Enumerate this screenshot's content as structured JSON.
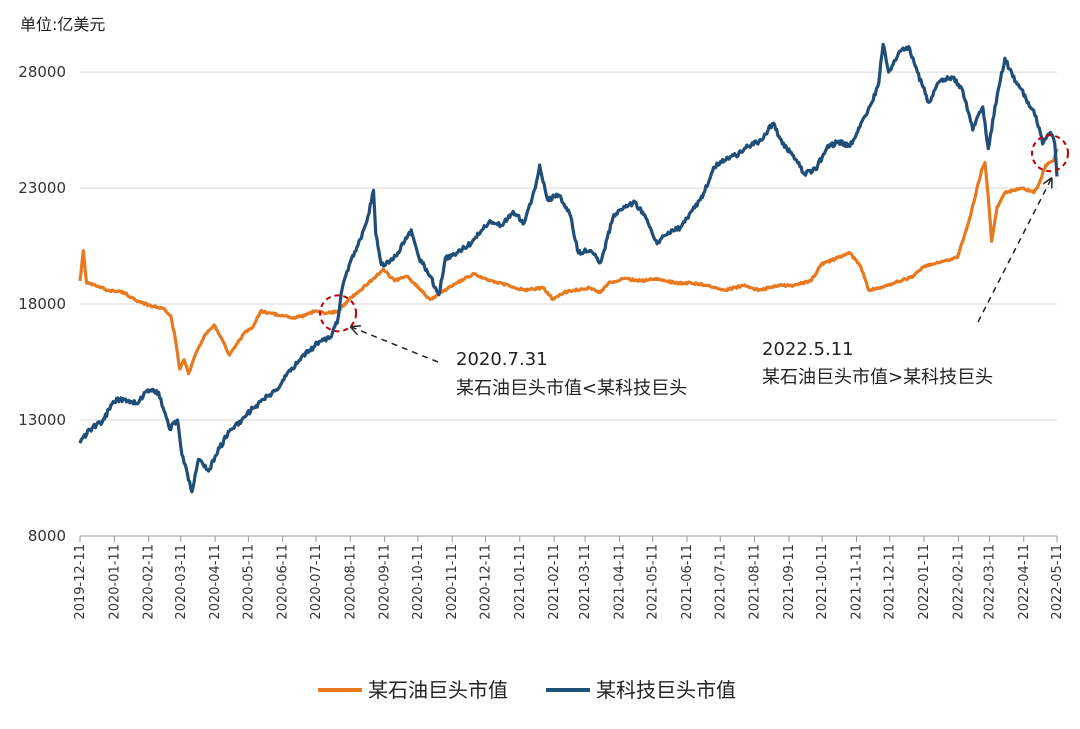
{
  "chart_data": {
    "type": "line",
    "unit_label": "单位:亿美元",
    "y_ticks": [
      8000,
      13000,
      18000,
      23000,
      28000
    ],
    "ylim": [
      8000,
      29600
    ],
    "x_ticks": [
      "2019-12-11",
      "2020-01-11",
      "2020-02-11",
      "2020-03-11",
      "2020-04-11",
      "2020-05-11",
      "2020-06-11",
      "2020-07-11",
      "2020-08-11",
      "2020-09-11",
      "2020-10-11",
      "2020-11-11",
      "2020-12-11",
      "2021-01-11",
      "2021-02-11",
      "2021-03-11",
      "2021-04-11",
      "2021-05-11",
      "2021-06-11",
      "2021-07-11",
      "2021-08-11",
      "2021-09-11",
      "2021-10-11",
      "2021-11-11",
      "2021-12-11",
      "2022-01-11",
      "2022-02-11",
      "2022-03-11",
      "2022-04-11",
      "2022-05-11"
    ],
    "xlim": [
      "2019-12-11",
      "2022-05-11"
    ],
    "grid_y": true,
    "legend_position": "bottom",
    "colors": {
      "oil": "#e8791e",
      "tech": "#1f4e79",
      "highlight": "#c00000",
      "grid": "#d9d9d9"
    },
    "series": [
      {
        "name": "某石油巨头市值",
        "points": [
          [
            "2019-12-11",
            19000
          ],
          [
            "2019-12-14",
            20300
          ],
          [
            "2019-12-17",
            18900
          ],
          [
            "2019-12-25",
            18800
          ],
          [
            "2020-01-05",
            18600
          ],
          [
            "2020-01-20",
            18500
          ],
          [
            "2020-02-01",
            18100
          ],
          [
            "2020-02-15",
            17900
          ],
          [
            "2020-02-25",
            17800
          ],
          [
            "2020-03-02",
            17500
          ],
          [
            "2020-03-06",
            16500
          ],
          [
            "2020-03-10",
            15200
          ],
          [
            "2020-03-14",
            15600
          ],
          [
            "2020-03-18",
            15000
          ],
          [
            "2020-03-24",
            15800
          ],
          [
            "2020-04-01",
            16600
          ],
          [
            "2020-04-10",
            17100
          ],
          [
            "2020-04-18",
            16400
          ],
          [
            "2020-04-24",
            15800
          ],
          [
            "2020-05-01",
            16300
          ],
          [
            "2020-05-08",
            16800
          ],
          [
            "2020-05-15",
            17000
          ],
          [
            "2020-05-22",
            17700
          ],
          [
            "2020-06-01",
            17600
          ],
          [
            "2020-06-10",
            17500
          ],
          [
            "2020-06-20",
            17400
          ],
          [
            "2020-07-01",
            17500
          ],
          [
            "2020-07-10",
            17700
          ],
          [
            "2020-07-20",
            17600
          ],
          [
            "2020-07-31",
            17700
          ],
          [
            "2020-08-10",
            18200
          ],
          [
            "2020-08-20",
            18600
          ],
          [
            "2020-09-01",
            19100
          ],
          [
            "2020-09-10",
            19500
          ],
          [
            "2020-09-20",
            19000
          ],
          [
            "2020-10-01",
            19200
          ],
          [
            "2020-10-12",
            18700
          ],
          [
            "2020-10-22",
            18200
          ],
          [
            "2020-11-01",
            18500
          ],
          [
            "2020-11-15",
            18900
          ],
          [
            "2020-12-01",
            19300
          ],
          [
            "2020-12-15",
            19000
          ],
          [
            "2021-01-01",
            18800
          ],
          [
            "2021-01-15",
            18600
          ],
          [
            "2021-02-01",
            18700
          ],
          [
            "2021-02-10",
            18200
          ],
          [
            "2021-02-20",
            18500
          ],
          [
            "2021-03-01",
            18600
          ],
          [
            "2021-03-15",
            18700
          ],
          [
            "2021-03-25",
            18500
          ],
          [
            "2021-04-01",
            18900
          ],
          [
            "2021-04-15",
            19100
          ],
          [
            "2021-05-01",
            19000
          ],
          [
            "2021-05-15",
            19100
          ],
          [
            "2021-06-01",
            18900
          ],
          [
            "2021-06-15",
            18900
          ],
          [
            "2021-07-01",
            18800
          ],
          [
            "2021-07-15",
            18600
          ],
          [
            "2021-08-01",
            18800
          ],
          [
            "2021-08-15",
            18600
          ],
          [
            "2021-09-01",
            18800
          ],
          [
            "2021-09-15",
            18800
          ],
          [
            "2021-10-01",
            19000
          ],
          [
            "2021-10-10",
            19700
          ],
          [
            "2021-10-25",
            20000
          ],
          [
            "2021-11-05",
            20200
          ],
          [
            "2021-11-15",
            19600
          ],
          [
            "2021-11-22",
            18600
          ],
          [
            "2021-12-01",
            18700
          ],
          [
            "2021-12-15",
            18900
          ],
          [
            "2022-01-01",
            19200
          ],
          [
            "2022-01-10",
            19600
          ],
          [
            "2022-01-25",
            19800
          ],
          [
            "2022-02-10",
            20000
          ],
          [
            "2022-02-20",
            21500
          ],
          [
            "2022-02-27",
            22800
          ],
          [
            "2022-03-04",
            23800
          ],
          [
            "2022-03-07",
            24100
          ],
          [
            "2022-03-10",
            22600
          ],
          [
            "2022-03-13",
            20700
          ],
          [
            "2022-03-18",
            22200
          ],
          [
            "2022-03-25",
            22800
          ],
          [
            "2022-04-01",
            22900
          ],
          [
            "2022-04-10",
            23000
          ],
          [
            "2022-04-20",
            22800
          ],
          [
            "2022-04-25",
            23200
          ],
          [
            "2022-05-01",
            24000
          ],
          [
            "2022-05-08",
            24200
          ],
          [
            "2022-05-11",
            24700
          ]
        ]
      },
      {
        "name": "某科技巨头市值",
        "points": [
          [
            "2019-12-11",
            12000
          ],
          [
            "2019-12-20",
            12600
          ],
          [
            "2019-12-31",
            12900
          ],
          [
            "2020-01-10",
            13800
          ],
          [
            "2020-01-20",
            13900
          ],
          [
            "2020-02-01",
            13700
          ],
          [
            "2020-02-10",
            14300
          ],
          [
            "2020-02-20",
            14200
          ],
          [
            "2020-03-01",
            12600
          ],
          [
            "2020-03-08",
            13000
          ],
          [
            "2020-03-12",
            11500
          ],
          [
            "2020-03-16",
            10900
          ],
          [
            "2020-03-21",
            9900
          ],
          [
            "2020-03-27",
            11300
          ],
          [
            "2020-04-05",
            10800
          ],
          [
            "2020-04-15",
            11800
          ],
          [
            "2020-04-25",
            12600
          ],
          [
            "2020-05-05",
            13000
          ],
          [
            "2020-05-15",
            13500
          ],
          [
            "2020-05-25",
            13900
          ],
          [
            "2020-06-05",
            14300
          ],
          [
            "2020-06-15",
            15000
          ],
          [
            "2020-06-25",
            15500
          ],
          [
            "2020-07-05",
            16000
          ],
          [
            "2020-07-15",
            16400
          ],
          [
            "2020-07-25",
            16600
          ],
          [
            "2020-07-31",
            17400
          ],
          [
            "2020-08-03",
            18500
          ],
          [
            "2020-08-10",
            19700
          ],
          [
            "2020-08-20",
            20800
          ],
          [
            "2020-08-27",
            21800
          ],
          [
            "2020-09-01",
            22900
          ],
          [
            "2020-09-03",
            21000
          ],
          [
            "2020-09-08",
            19700
          ],
          [
            "2020-09-18",
            19900
          ],
          [
            "2020-09-28",
            20600
          ],
          [
            "2020-10-05",
            21200
          ],
          [
            "2020-10-12",
            20000
          ],
          [
            "2020-10-22",
            19200
          ],
          [
            "2020-10-30",
            18400
          ],
          [
            "2020-11-05",
            20000
          ],
          [
            "2020-11-15",
            20200
          ],
          [
            "2020-11-25",
            20500
          ],
          [
            "2020-12-05",
            21000
          ],
          [
            "2020-12-15",
            21600
          ],
          [
            "2020-12-25",
            21400
          ],
          [
            "2021-01-05",
            22000
          ],
          [
            "2021-01-15",
            21500
          ],
          [
            "2021-01-25",
            23000
          ],
          [
            "2021-01-29",
            24000
          ],
          [
            "2021-02-05",
            22500
          ],
          [
            "2021-02-15",
            22700
          ],
          [
            "2021-02-25",
            21900
          ],
          [
            "2021-03-05",
            20200
          ],
          [
            "2021-03-15",
            20300
          ],
          [
            "2021-03-25",
            19800
          ],
          [
            "2021-04-05",
            21700
          ],
          [
            "2021-04-15",
            22200
          ],
          [
            "2021-04-25",
            22400
          ],
          [
            "2021-05-05",
            21700
          ],
          [
            "2021-05-15",
            20600
          ],
          [
            "2021-05-25",
            21100
          ],
          [
            "2021-06-05",
            21300
          ],
          [
            "2021-06-15",
            22000
          ],
          [
            "2021-06-25",
            22600
          ],
          [
            "2021-07-05",
            23900
          ],
          [
            "2021-07-15",
            24200
          ],
          [
            "2021-07-25",
            24400
          ],
          [
            "2021-08-05",
            24800
          ],
          [
            "2021-08-15",
            25000
          ],
          [
            "2021-08-28",
            25800
          ],
          [
            "2021-09-05",
            24900
          ],
          [
            "2021-09-15",
            24400
          ],
          [
            "2021-09-25",
            23600
          ],
          [
            "2021-10-05",
            23800
          ],
          [
            "2021-10-15",
            24700
          ],
          [
            "2021-10-25",
            25000
          ],
          [
            "2021-11-05",
            24800
          ],
          [
            "2021-11-15",
            25800
          ],
          [
            "2021-11-25",
            26700
          ],
          [
            "2021-12-01",
            27500
          ],
          [
            "2021-12-05",
            29200
          ],
          [
            "2021-12-10",
            28000
          ],
          [
            "2021-12-20",
            28900
          ],
          [
            "2021-12-28",
            29100
          ],
          [
            "2022-01-05",
            28000
          ],
          [
            "2022-01-15",
            26700
          ],
          [
            "2022-01-25",
            27600
          ],
          [
            "2022-02-05",
            27800
          ],
          [
            "2022-02-15",
            27200
          ],
          [
            "2022-02-24",
            25500
          ],
          [
            "2022-03-05",
            26500
          ],
          [
            "2022-03-10",
            24700
          ],
          [
            "2022-03-18",
            27000
          ],
          [
            "2022-03-25",
            28600
          ],
          [
            "2022-04-01",
            27800
          ],
          [
            "2022-04-08",
            27300
          ],
          [
            "2022-04-15",
            26700
          ],
          [
            "2022-04-22",
            26100
          ],
          [
            "2022-04-28",
            24900
          ],
          [
            "2022-05-05",
            25400
          ],
          [
            "2022-05-09",
            24900
          ],
          [
            "2022-05-11",
            23500
          ]
        ]
      }
    ],
    "annotations": [
      {
        "date": "2020-07-31",
        "value": 17600,
        "line1": "2020.7.31",
        "line2": "某石油巨头市值<某科技巨头"
      },
      {
        "date": "2022-05-11",
        "value": 24500,
        "line1": "2022.5.11",
        "line2": "某石油巨头市值>某科技巨头"
      }
    ]
  }
}
